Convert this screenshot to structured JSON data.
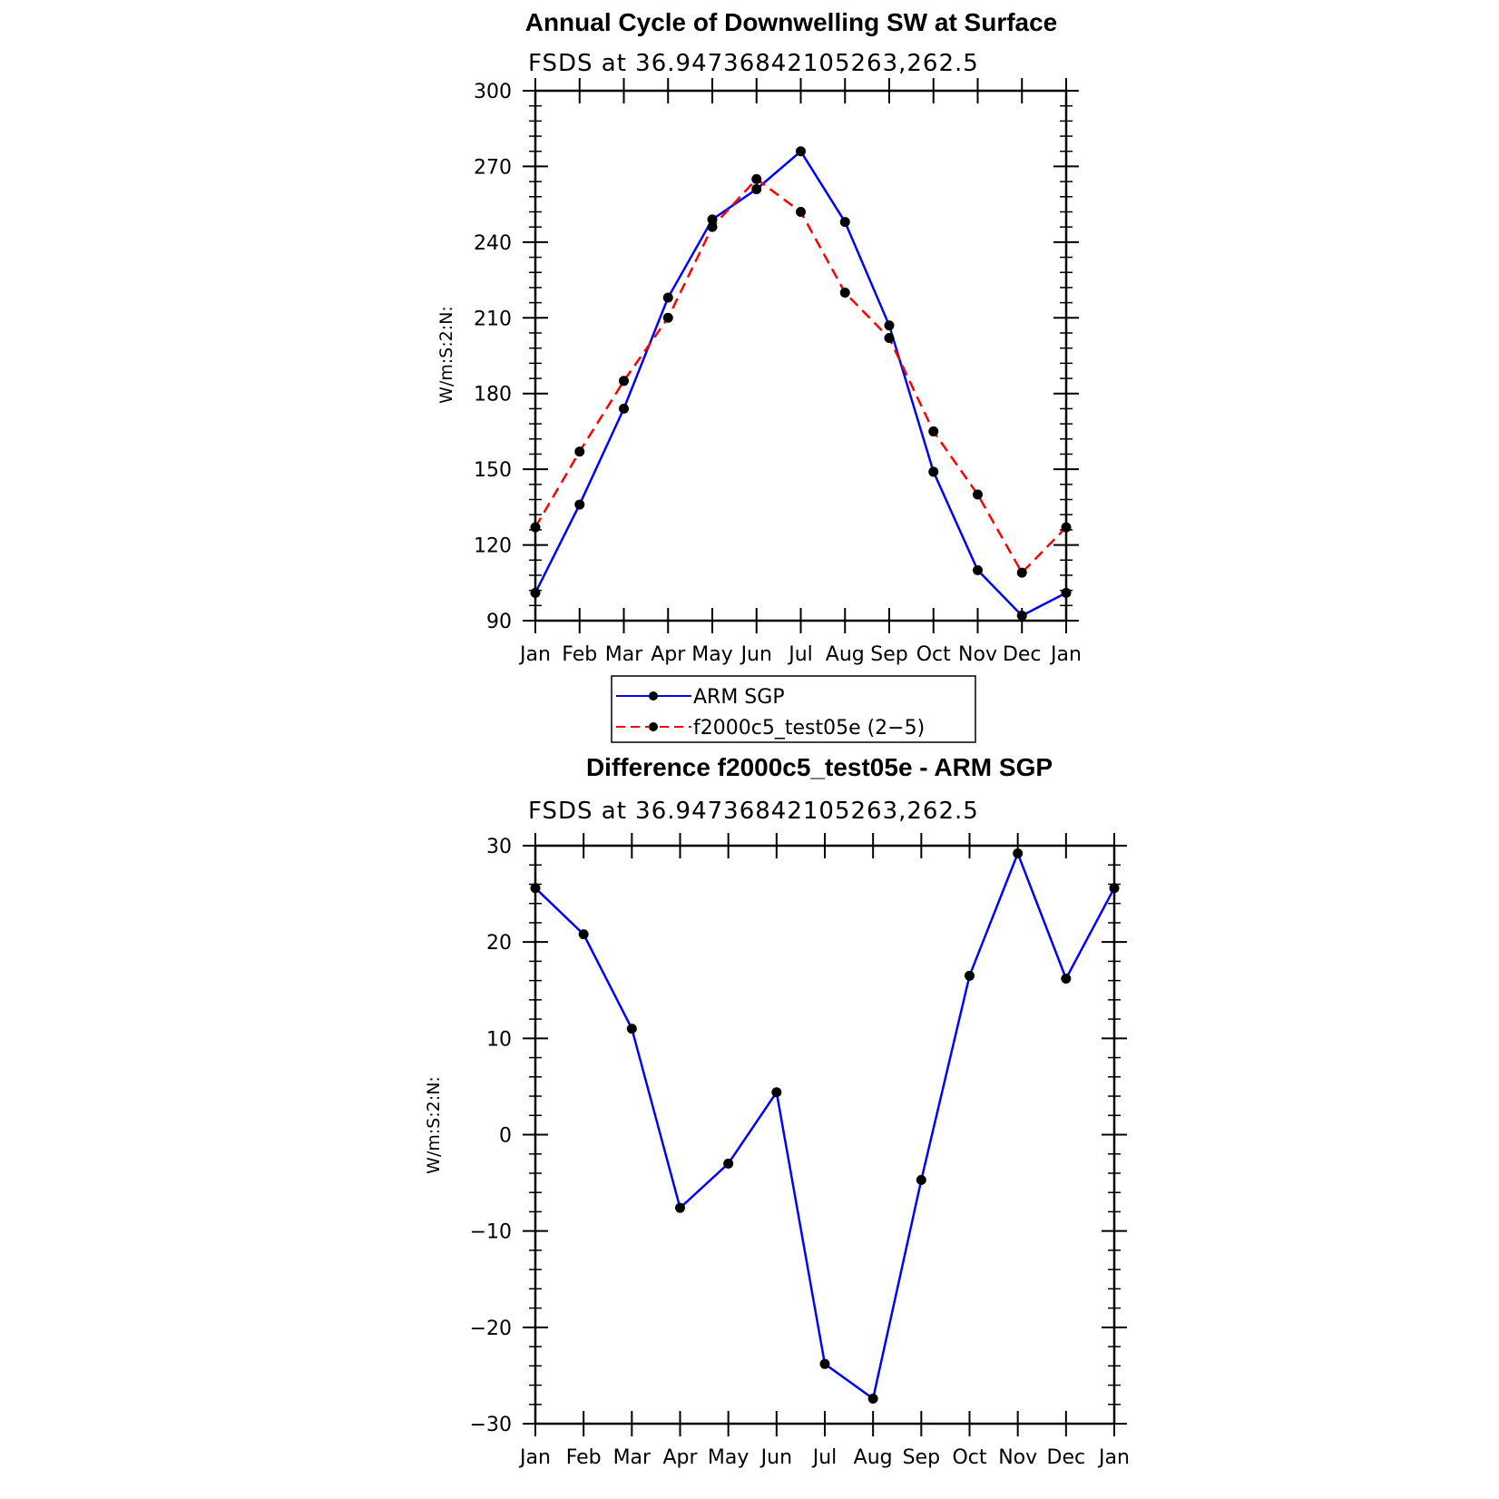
{
  "chart_data": [
    {
      "type": "line",
      "title": "Annual Cycle of Downwelling SW at Surface",
      "subtitle": "FSDS at 36.94736842105263,262.5",
      "ylabel": "W/m:S:2:N:",
      "xlabel": "",
      "categories": [
        "Jan",
        "Feb",
        "Mar",
        "Apr",
        "May",
        "Jun",
        "Jul",
        "Aug",
        "Sep",
        "Oct",
        "Nov",
        "Dec",
        "Jan"
      ],
      "ylim": [
        90,
        300
      ],
      "yticks": [
        "90",
        "120",
        "150",
        "180",
        "210",
        "240",
        "270",
        "300"
      ],
      "series": [
        {
          "name": "ARM SGP",
          "color": "#0000ff",
          "style": "solid",
          "values": [
            101,
            136,
            174,
            218,
            249,
            261,
            276,
            248,
            207,
            149,
            110,
            92,
            101
          ]
        },
        {
          "name": "f2000c5_test05e (2−5)",
          "color": "#ff0000",
          "style": "dashed",
          "values": [
            127,
            157,
            185,
            210,
            246,
            265,
            252,
            220,
            202,
            165,
            140,
            109,
            127
          ]
        }
      ],
      "legend": "below"
    },
    {
      "type": "line",
      "title": "Difference f2000c5_test05e - ARM SGP",
      "subtitle": "FSDS at 36.94736842105263,262.5",
      "ylabel": "W/m:S:2:N:",
      "xlabel": "",
      "categories": [
        "Jan",
        "Feb",
        "Mar",
        "Apr",
        "May",
        "Jun",
        "Jul",
        "Aug",
        "Sep",
        "Oct",
        "Nov",
        "Dec",
        "Jan"
      ],
      "ylim": [
        -30,
        30
      ],
      "yticks": [
        "−30",
        "−20",
        "−10",
        "0",
        "10",
        "20",
        "30"
      ],
      "series": [
        {
          "color": "#0000ff",
          "style": "solid",
          "values": [
            25.6,
            20.8,
            11.0,
            -7.6,
            -3.0,
            4.4,
            -23.8,
            -27.4,
            -4.7,
            16.5,
            29.2,
            16.2,
            25.6
          ]
        }
      ]
    }
  ]
}
